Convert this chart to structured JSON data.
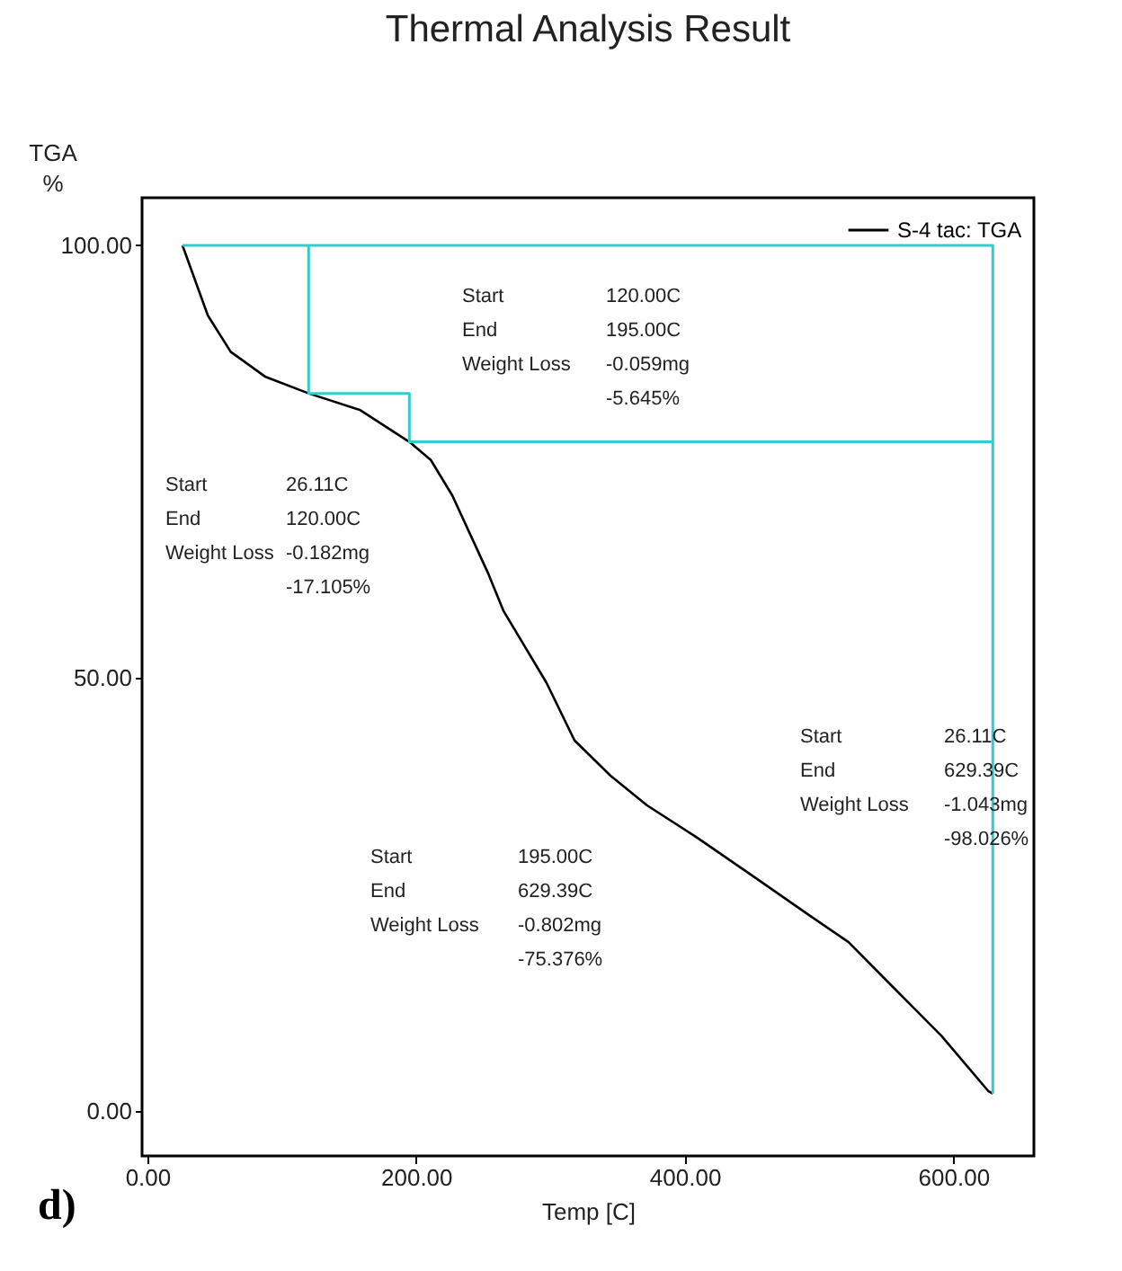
{
  "chart_data": {
    "type": "line",
    "title": "Thermal Analysis Result",
    "xlabel": "Temp  [C]",
    "ylabel": "TGA\n%",
    "xlim": [
      -4,
      660
    ],
    "ylim": [
      -5.2,
      105.5
    ],
    "xticks": [
      {
        "value": 0,
        "label": "0.00"
      },
      {
        "value": 200,
        "label": "200.00"
      },
      {
        "value": 400,
        "label": "400.00"
      },
      {
        "value": 600,
        "label": "600.00"
      }
    ],
    "yticks": [
      {
        "value": 0,
        "label": "0.00"
      },
      {
        "value": 50,
        "label": "50.00"
      },
      {
        "value": 100,
        "label": "100.00"
      }
    ],
    "grid": false,
    "legend": "top right",
    "line_style": "solid",
    "marker": "none",
    "series": [
      {
        "name": "S-4 tac: TGA",
        "color": "#000000",
        "x": [
          26.11,
          45,
          62,
          88,
          120,
          158,
          195,
          211,
          227,
          254,
          265,
          297,
          318,
          345,
          372,
          409,
          452,
          490,
          522,
          559,
          591,
          626,
          629.39
        ],
        "values": [
          100,
          91.9,
          87.7,
          84.8,
          82.9,
          81,
          77.3,
          75.2,
          71.1,
          62,
          57.8,
          49.5,
          42.8,
          38.7,
          35.3,
          31.6,
          27,
          22.9,
          19.5,
          13.7,
          8.7,
          2.3,
          2
        ]
      },
      {
        "color": "#33cccc",
        "x": [
          26.11,
          629.39,
          629.39
        ],
        "values": [
          100,
          100,
          2
        ]
      },
      {
        "color": "#33cccc",
        "x": [
          120,
          120,
          195,
          195,
          629.39
        ],
        "values": [
          100,
          82.9,
          82.9,
          77.3,
          77.3
        ]
      }
    ],
    "annotations": [
      "Start",
      "26.11C",
      "End",
      "120.00C",
      "Weight Loss",
      "-0.182mg",
      "-17.105%",
      "Start",
      "120.00C",
      "End",
      "195.00C",
      "Weight Loss",
      "-0.059mg",
      "-5.645%",
      "Start",
      "195.00C",
      "End",
      "629.39C",
      "Weight Loss",
      "-0.802mg",
      "-75.376%",
      "Start",
      "26.11C",
      "End",
      "629.39C",
      "Weight Loss",
      "-1.043mg",
      "-98.026%",
      "d)"
    ]
  }
}
